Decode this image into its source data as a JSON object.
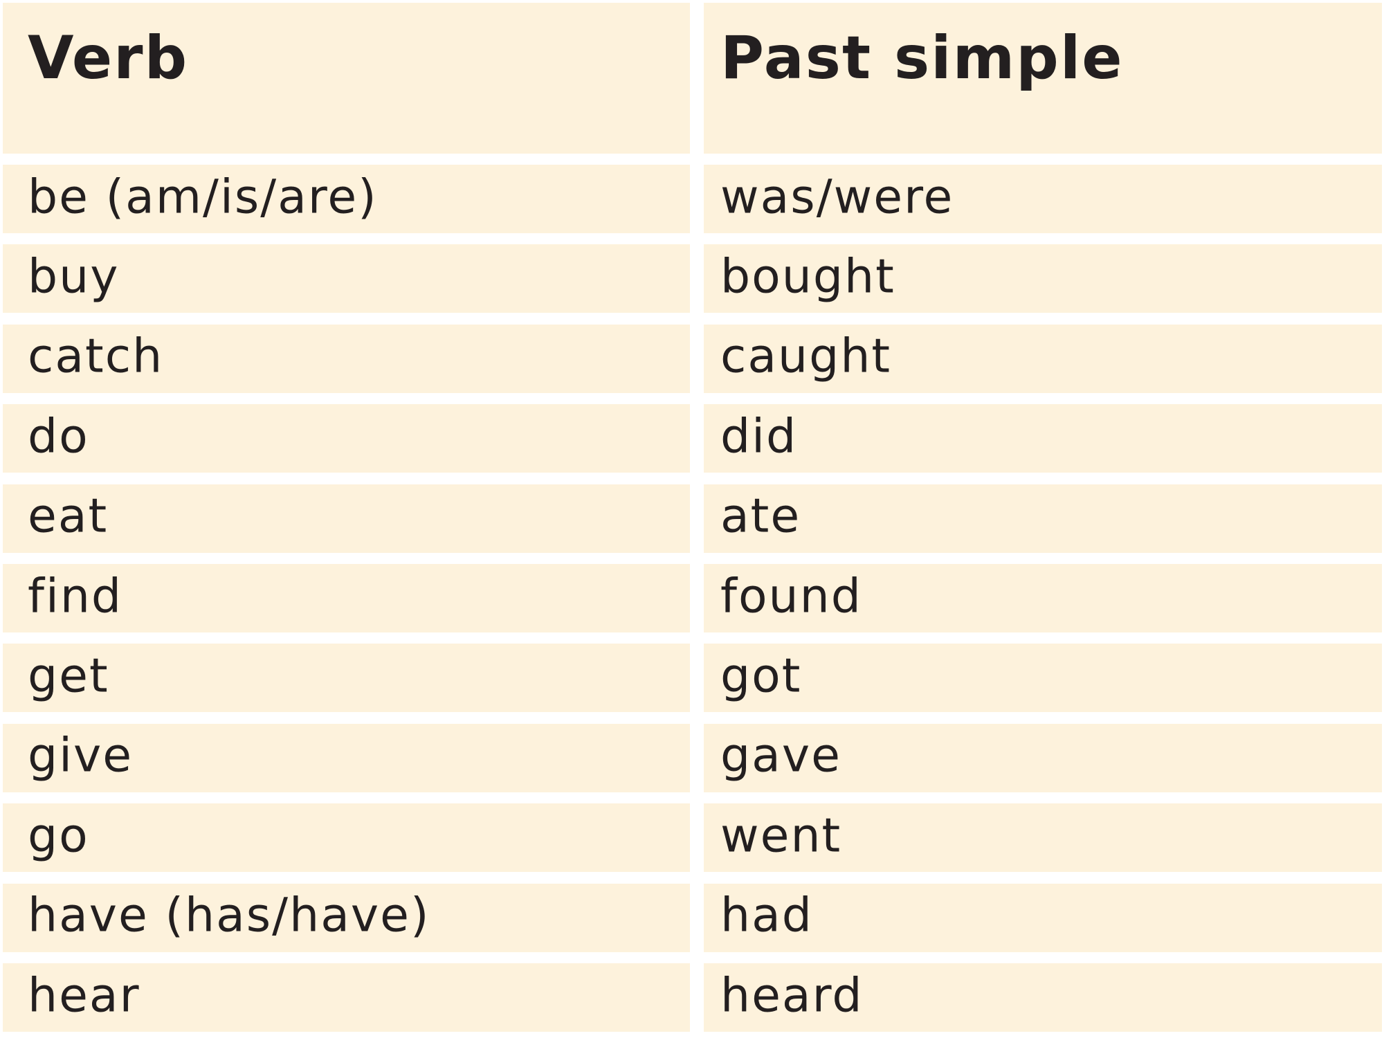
{
  "table": {
    "headers": [
      "Verb",
      "Past simple"
    ],
    "rows": [
      [
        "be (am/is/are)",
        "was/were"
      ],
      [
        "buy",
        "bought"
      ],
      [
        "catch",
        "caught"
      ],
      [
        "do",
        "did"
      ],
      [
        "eat",
        "ate"
      ],
      [
        "find",
        "found"
      ],
      [
        "get",
        "got"
      ],
      [
        "give",
        "gave"
      ],
      [
        "go",
        "went"
      ],
      [
        "have (has/have)",
        "had"
      ],
      [
        "hear",
        "heard"
      ]
    ],
    "colors": {
      "cell_background": "#fdf2dc",
      "text": "#231f20",
      "gridlines": "#ffffff"
    }
  }
}
